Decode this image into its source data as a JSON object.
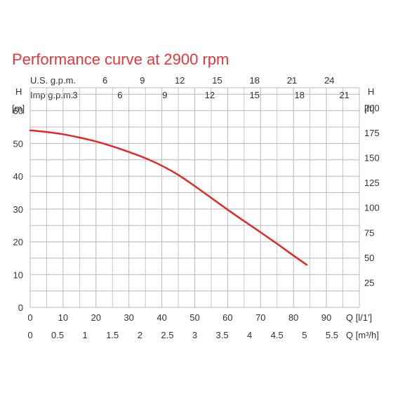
{
  "colors": {
    "title": "#e5383b",
    "curve": "#e02a2a",
    "grid": "#b9b9b9",
    "text": "#333333"
  },
  "chart_data": {
    "type": "line",
    "title": "Performance curve at 2900 rpm",
    "x_axes": [
      {
        "id": "lmin",
        "label": "Q [l/1']",
        "range": [
          0,
          100
        ],
        "ticks": [
          0,
          10,
          20,
          30,
          40,
          50,
          60,
          70,
          80,
          90
        ]
      },
      {
        "id": "m3h",
        "label": "Q [m³/h]",
        "range": [
          0,
          6
        ],
        "ticks": [
          "0",
          "0.5",
          "1",
          "1.5",
          "2",
          "2.5",
          "3",
          "3.5",
          "4",
          "4.5",
          "5",
          "5.5"
        ]
      },
      {
        "id": "usgpm",
        "label": "U.S. g.p.m.",
        "position": "top",
        "range": [
          0,
          26.4
        ],
        "ticks": [
          "6",
          "9",
          "12",
          "15",
          "18",
          "21",
          "24"
        ]
      },
      {
        "id": "impgpm",
        "label": "Imp g.p.m.",
        "position": "top",
        "range": [
          0,
          22
        ],
        "ticks": [
          "3",
          "6",
          "9",
          "12",
          "15",
          "18",
          "21"
        ]
      }
    ],
    "y_axes": [
      {
        "id": "m",
        "label": "H",
        "unit": "[m]",
        "range": [
          0,
          67
        ],
        "ticks": [
          0,
          10,
          20,
          30,
          40,
          50,
          60
        ]
      },
      {
        "id": "ft",
        "label": "H",
        "unit": "[ft]",
        "range": [
          0,
          220
        ],
        "ticks": [
          25,
          50,
          75,
          100,
          125,
          150,
          175,
          200
        ]
      }
    ],
    "grid": true,
    "series": [
      {
        "x": [
          0,
          5,
          10,
          15,
          20,
          25,
          30,
          35,
          40,
          45,
          50,
          55,
          60,
          65,
          70,
          75,
          80,
          84
        ],
        "y": [
          54,
          53.5,
          52.8,
          51.8,
          50.6,
          49.1,
          47.4,
          45.5,
          43.2,
          40.4,
          37.0,
          33.4,
          29.8,
          26.3,
          22.9,
          19.4,
          15.8,
          13.0
        ]
      }
    ]
  }
}
